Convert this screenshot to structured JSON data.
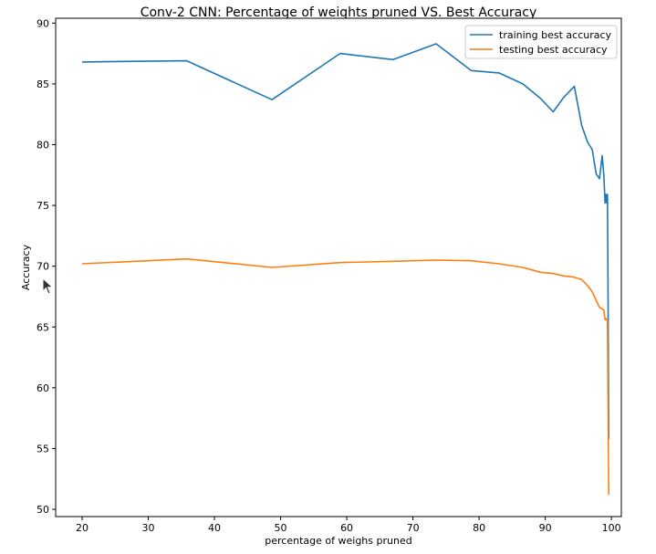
{
  "chart_data": {
    "type": "line",
    "title": "Conv-2 CNN: Percentage of weights pruned VS. Best Accuracy",
    "xlabel": "percentage of weighs pruned",
    "ylabel": "Accuracy",
    "xlim": [
      16,
      101.5
    ],
    "ylim": [
      49.4,
      90.4
    ],
    "xticks": [
      20,
      30,
      40,
      50,
      60,
      70,
      80,
      90,
      100
    ],
    "yticks": [
      50,
      55,
      60,
      65,
      70,
      75,
      80,
      85,
      90
    ],
    "grid": false,
    "legend_position": "top-right",
    "series": [
      {
        "name": "training best accuracy",
        "color": "#1f77b4",
        "x": [
          20,
          35.8,
          48.7,
          59,
          67,
          73.5,
          78.8,
          83,
          86.6,
          89.3,
          91.2,
          92.8,
          94.4,
          95.5,
          96.4,
          97.1,
          97.7,
          98.2,
          98.6,
          98.85,
          99.05,
          99.2,
          99.3,
          99.4,
          99.5,
          99.6
        ],
        "values": [
          86.8,
          86.9,
          83.7,
          87.5,
          87.0,
          88.3,
          86.1,
          85.9,
          85.0,
          83.8,
          82.7,
          83.9,
          84.8,
          81.6,
          80.2,
          79.6,
          77.6,
          77.2,
          79.1,
          77.5,
          75.2,
          75.9,
          75.2,
          75.9,
          67.0,
          55.8
        ]
      },
      {
        "name": "testing best accuracy",
        "color": "#ff7f0e",
        "x": [
          20,
          35.8,
          48.7,
          59,
          67,
          73.5,
          78.8,
          83,
          86.6,
          89.3,
          91.2,
          92.8,
          94.4,
          95.5,
          96.4,
          97.1,
          97.7,
          98.2,
          98.6,
          98.85,
          99.05,
          99.2,
          99.3,
          99.4,
          99.5,
          99.6
        ],
        "values": [
          70.2,
          70.6,
          69.9,
          70.3,
          70.4,
          70.5,
          70.45,
          70.2,
          69.9,
          69.5,
          69.4,
          69.2,
          69.1,
          68.9,
          68.4,
          67.9,
          67.2,
          66.6,
          66.5,
          66.4,
          65.6,
          65.7,
          65.6,
          65.5,
          58.0,
          51.2
        ]
      }
    ]
  }
}
